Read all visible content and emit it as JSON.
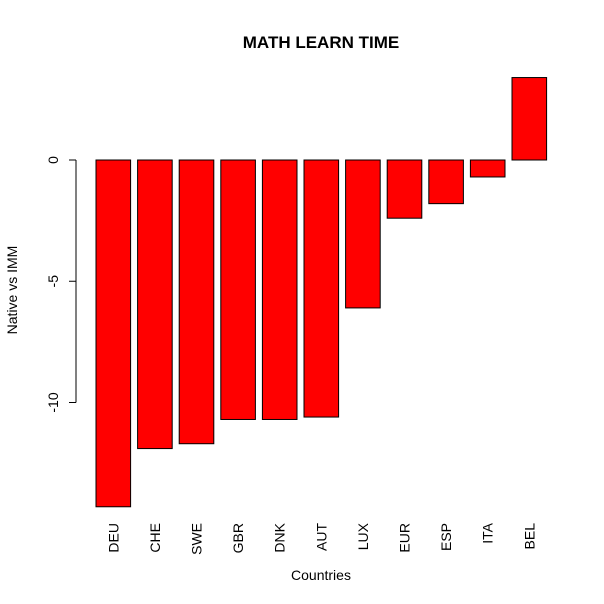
{
  "chart_data": {
    "type": "bar",
    "title": "MATH LEARN TIME",
    "xlabel": "Countries",
    "ylabel": "Native vs IMM",
    "categories": [
      "DEU",
      "CHE",
      "SWE",
      "GBR",
      "DNK",
      "AUT",
      "LUX",
      "EUR",
      "ESP",
      "ITA",
      "BEL"
    ],
    "values": [
      -14.3,
      -11.9,
      -11.7,
      -10.7,
      -10.7,
      -10.6,
      -6.1,
      -2.4,
      -1.8,
      -0.7,
      3.4
    ],
    "ylim": [
      -14.5,
      3.5
    ],
    "yticks": [
      0,
      -5,
      -10
    ],
    "bar_color": "#ff0000",
    "bar_stroke": "#000000",
    "grid": false,
    "legend": "none"
  }
}
